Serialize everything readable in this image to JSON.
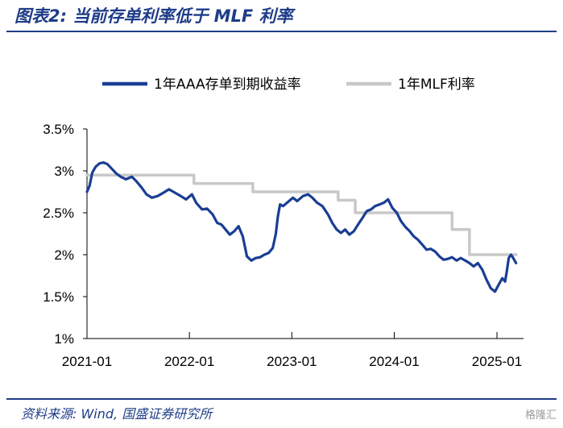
{
  "header": {
    "title": "图表2:  当前存单利率低于 MLF 利率"
  },
  "footer": {
    "source": "资料来源:  Wind,  国盛证券研究所",
    "watermark": "格隆汇"
  },
  "chart_data": {
    "type": "line",
    "title": "",
    "xlabel": "",
    "ylabel": "",
    "ylim": [
      1,
      3.5
    ],
    "y_ticks": [
      "3.5%",
      "3%",
      "2.5%",
      "2%",
      "1.5%",
      "1%"
    ],
    "y_tick_values": [
      3.5,
      3.0,
      2.5,
      2.0,
      1.5,
      1.0
    ],
    "x_ticks": [
      "2021-01",
      "2022-01",
      "2023-01",
      "2024-01",
      "2025-01"
    ],
    "x_tick_values": [
      "2021-01",
      "2022-01",
      "2023-01",
      "2024-01",
      "2025-01"
    ],
    "xlim": [
      "2021-01",
      "2025-03"
    ],
    "legend_position": "top",
    "grid": false,
    "series": [
      {
        "name": "1年AAA存单到期收益率",
        "color": "#1a3e94",
        "style": "line",
        "points": [
          [
            "2021-01-01",
            2.75
          ],
          [
            "2021-01-10",
            2.82
          ],
          [
            "2021-01-20",
            2.98
          ],
          [
            "2021-02-01",
            3.05
          ],
          [
            "2021-02-15",
            3.09
          ],
          [
            "2021-03-01",
            3.1
          ],
          [
            "2021-03-15",
            3.08
          ],
          [
            "2021-04-01",
            3.02
          ],
          [
            "2021-04-15",
            2.97
          ],
          [
            "2021-05-01",
            2.93
          ],
          [
            "2021-05-20",
            2.9
          ],
          [
            "2021-06-10",
            2.93
          ],
          [
            "2021-06-25",
            2.88
          ],
          [
            "2021-07-15",
            2.8
          ],
          [
            "2021-08-01",
            2.72
          ],
          [
            "2021-08-20",
            2.68
          ],
          [
            "2021-09-10",
            2.7
          ],
          [
            "2021-10-01",
            2.74
          ],
          [
            "2021-10-20",
            2.78
          ],
          [
            "2021-11-10",
            2.74
          ],
          [
            "2021-12-01",
            2.7
          ],
          [
            "2021-12-20",
            2.66
          ],
          [
            "2022-01-10",
            2.72
          ],
          [
            "2022-01-25",
            2.62
          ],
          [
            "2022-02-15",
            2.54
          ],
          [
            "2022-03-05",
            2.55
          ],
          [
            "2022-03-25",
            2.48
          ],
          [
            "2022-04-10",
            2.38
          ],
          [
            "2022-04-25",
            2.36
          ],
          [
            "2022-05-10",
            2.3
          ],
          [
            "2022-05-25",
            2.24
          ],
          [
            "2022-06-10",
            2.28
          ],
          [
            "2022-06-25",
            2.34
          ],
          [
            "2022-07-10",
            2.22
          ],
          [
            "2022-07-25",
            1.98
          ],
          [
            "2022-08-10",
            1.93
          ],
          [
            "2022-08-25",
            1.96
          ],
          [
            "2022-09-10",
            1.97
          ],
          [
            "2022-09-25",
            2.0
          ],
          [
            "2022-10-10",
            2.02
          ],
          [
            "2022-10-25",
            2.08
          ],
          [
            "2022-11-05",
            2.25
          ],
          [
            "2022-11-12",
            2.45
          ],
          [
            "2022-11-20",
            2.6
          ],
          [
            "2022-12-01",
            2.58
          ],
          [
            "2022-12-15",
            2.62
          ],
          [
            "2023-01-05",
            2.68
          ],
          [
            "2023-01-20",
            2.64
          ],
          [
            "2023-02-10",
            2.7
          ],
          [
            "2023-02-28",
            2.72
          ],
          [
            "2023-03-15",
            2.68
          ],
          [
            "2023-04-01",
            2.62
          ],
          [
            "2023-04-20",
            2.58
          ],
          [
            "2023-05-10",
            2.48
          ],
          [
            "2023-05-25",
            2.38
          ],
          [
            "2023-06-10",
            2.3
          ],
          [
            "2023-06-25",
            2.26
          ],
          [
            "2023-07-10",
            2.3
          ],
          [
            "2023-07-25",
            2.24
          ],
          [
            "2023-08-10",
            2.28
          ],
          [
            "2023-08-25",
            2.36
          ],
          [
            "2023-09-10",
            2.44
          ],
          [
            "2023-09-25",
            2.52
          ],
          [
            "2023-10-10",
            2.54
          ],
          [
            "2023-10-25",
            2.58
          ],
          [
            "2023-11-10",
            2.6
          ],
          [
            "2023-11-25",
            2.62
          ],
          [
            "2023-12-10",
            2.66
          ],
          [
            "2023-12-25",
            2.56
          ],
          [
            "2024-01-10",
            2.5
          ],
          [
            "2024-01-25",
            2.4
          ],
          [
            "2024-02-10",
            2.33
          ],
          [
            "2024-02-25",
            2.28
          ],
          [
            "2024-03-10",
            2.22
          ],
          [
            "2024-03-25",
            2.18
          ],
          [
            "2024-04-10",
            2.12
          ],
          [
            "2024-04-25",
            2.06
          ],
          [
            "2024-05-10",
            2.07
          ],
          [
            "2024-05-25",
            2.04
          ],
          [
            "2024-06-10",
            1.98
          ],
          [
            "2024-06-25",
            1.94
          ],
          [
            "2024-07-10",
            1.95
          ],
          [
            "2024-07-25",
            1.97
          ],
          [
            "2024-08-10",
            1.93
          ],
          [
            "2024-08-25",
            1.96
          ],
          [
            "2024-09-10",
            1.93
          ],
          [
            "2024-09-25",
            1.9
          ],
          [
            "2024-10-10",
            1.86
          ],
          [
            "2024-10-25",
            1.9
          ],
          [
            "2024-11-10",
            1.82
          ],
          [
            "2024-11-25",
            1.7
          ],
          [
            "2024-12-10",
            1.6
          ],
          [
            "2024-12-25",
            1.56
          ],
          [
            "2025-01-10",
            1.66
          ],
          [
            "2025-01-20",
            1.72
          ],
          [
            "2025-01-30",
            1.68
          ],
          [
            "2025-02-05",
            1.8
          ],
          [
            "2025-02-12",
            1.96
          ],
          [
            "2025-02-20",
            2.0
          ],
          [
            "2025-02-28",
            1.96
          ],
          [
            "2025-03-10",
            1.9
          ]
        ]
      },
      {
        "name": "1年MLF利率",
        "color": "#c8c8c8",
        "style": "step",
        "points": [
          [
            "2021-01-01",
            2.95
          ],
          [
            "2022-01-17",
            2.85
          ],
          [
            "2022-08-15",
            2.75
          ],
          [
            "2023-06-15",
            2.65
          ],
          [
            "2023-08-15",
            2.5
          ],
          [
            "2024-07-25",
            2.3
          ],
          [
            "2024-09-25",
            2.0
          ],
          [
            "2025-03-10",
            2.0
          ]
        ]
      }
    ]
  }
}
